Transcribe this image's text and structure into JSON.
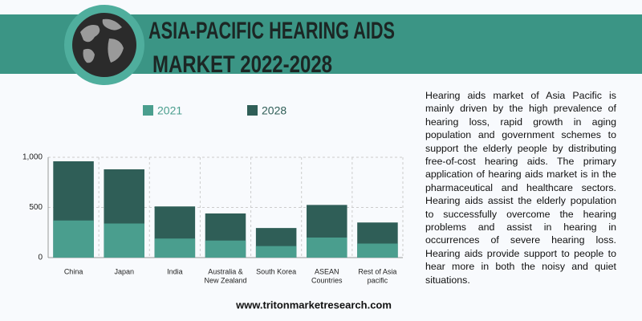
{
  "header": {
    "title_lines": [
      "ASIA-PACIFIC HEARING AIDS",
      "MARKET  2022-2028"
    ]
  },
  "description": "Hearing aids market of Asia Pacific is mainly driven by the high prevalence of hearing loss, rapid growth in aging population and government schemes to support the elderly people by distributing free-of-cost hearing aids. The primary application of hearing aids market is in the pharmaceutical and healthcare sectors. Hearing aids assist the elderly population to successfully overcome the hearing problems and assist in hearing in occurrences of severe hearing loss. Hearing aids provide support to people to hear more in both the noisy and quiet situations.",
  "footer": "www.tritonmarketresearch.com",
  "chart_data": {
    "type": "bar",
    "categories": [
      [
        "China"
      ],
      [
        "Japan"
      ],
      [
        "India"
      ],
      [
        "Australia &",
        "New Zealand"
      ],
      [
        "South Korea"
      ],
      [
        "ASEAN",
        "Countries"
      ],
      [
        "Rest of Asia",
        "pacific"
      ]
    ],
    "series": [
      {
        "name": "2021",
        "color": "#4a9e8e",
        "values": [
          370,
          340,
          190,
          170,
          115,
          200,
          140
        ]
      },
      {
        "name": "2028",
        "color": "#2f5e57",
        "values": [
          960,
          880,
          510,
          440,
          295,
          525,
          350
        ]
      }
    ],
    "ylim": [
      0,
      1000
    ],
    "yticks": [
      0,
      500,
      {
        "value": 1000,
        "label": "1,000"
      }
    ],
    "grid": true
  }
}
